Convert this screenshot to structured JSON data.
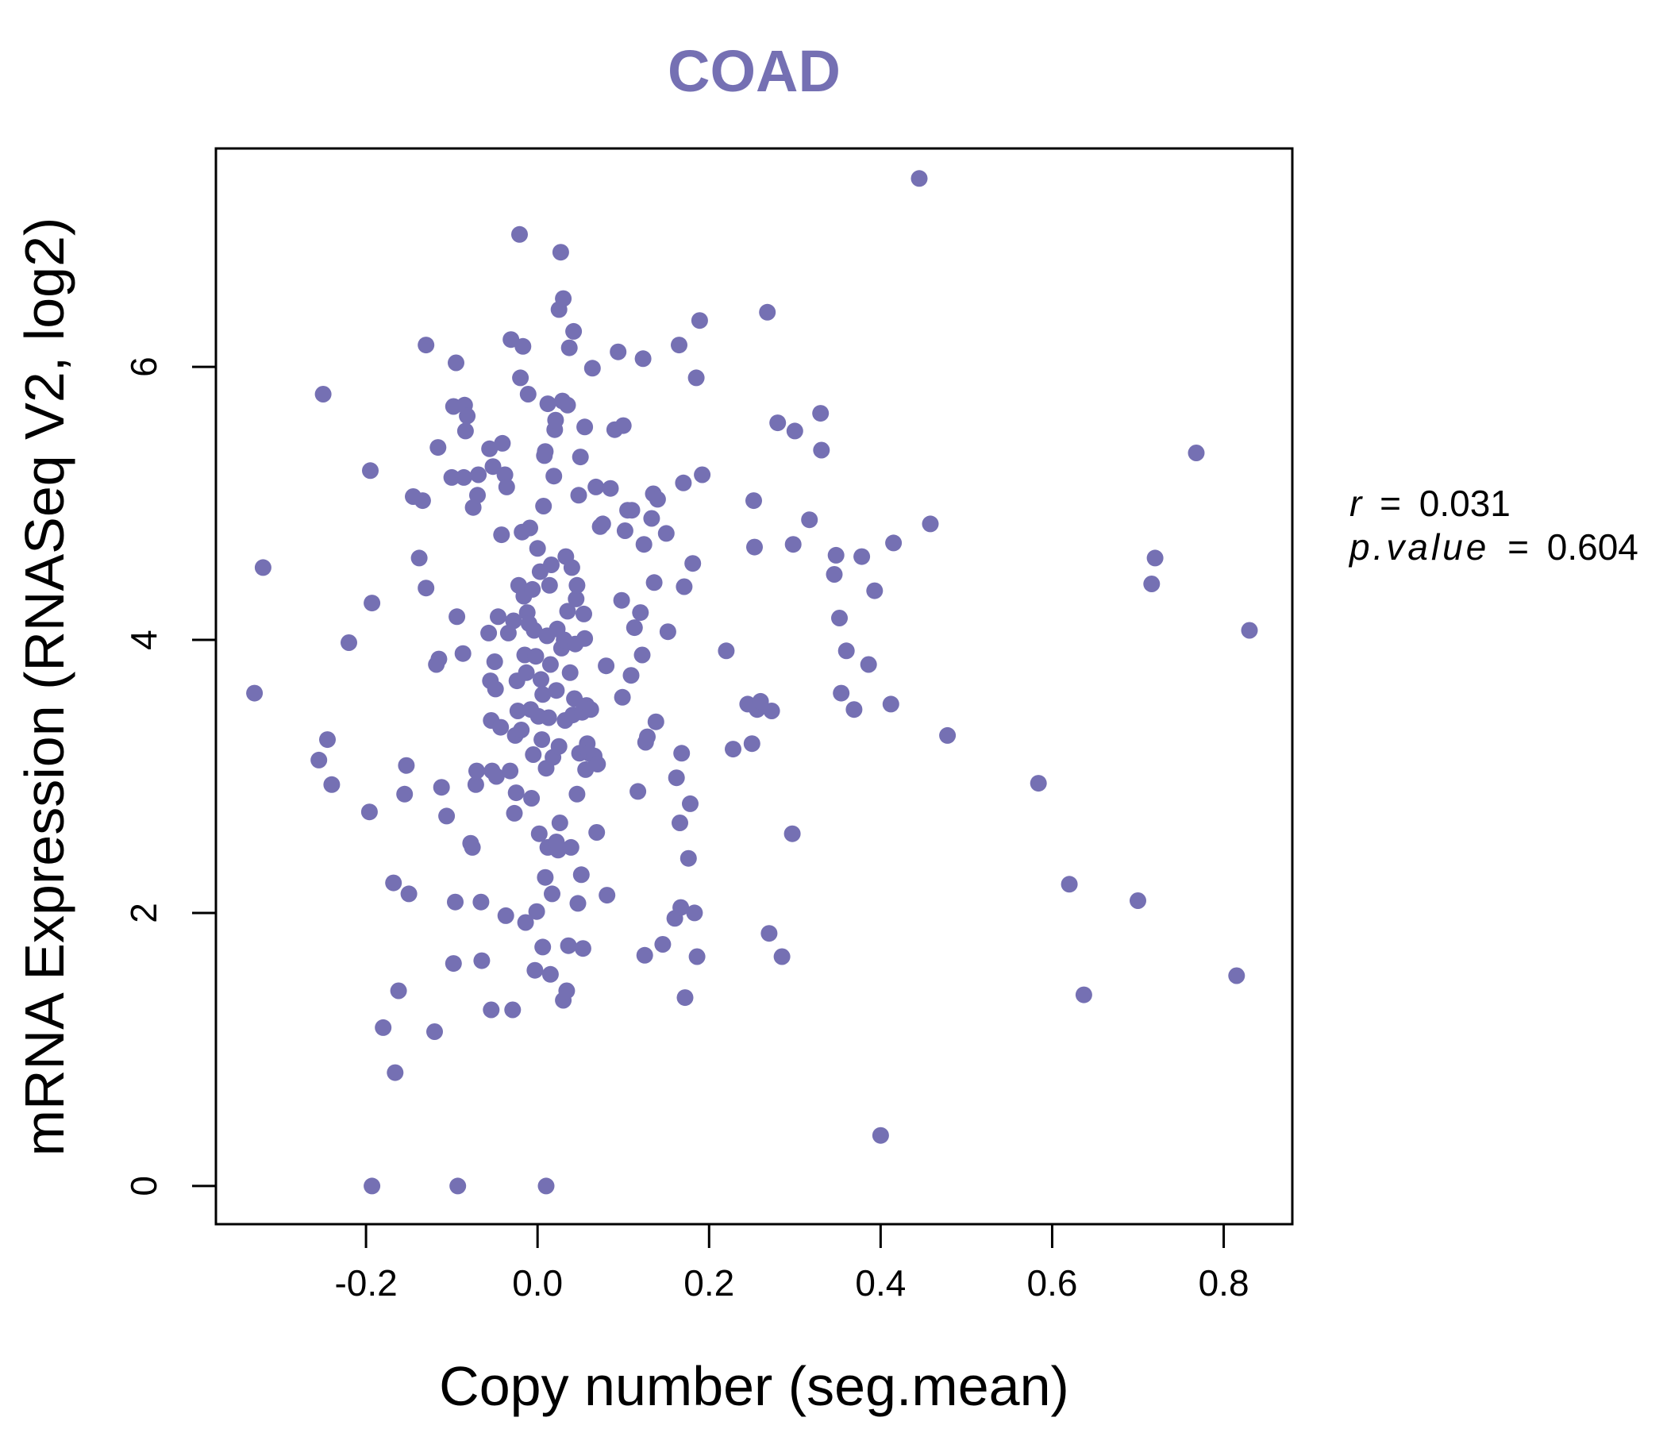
{
  "chart_data": {
    "type": "scatter",
    "title": "COAD",
    "xlabel": "Copy number (seg.mean)",
    "ylabel": "mRNA Expression (RNASeq V2, log2)",
    "xlim": [
      -0.375,
      0.88
    ],
    "ylim": [
      -0.28,
      7.6
    ],
    "x_ticks": [
      -0.2,
      0.0,
      0.2,
      0.4,
      0.6,
      0.8
    ],
    "x_tick_labels": [
      "-0.2",
      "0.0",
      "0.2",
      "0.4",
      "0.6",
      "0.8"
    ],
    "y_ticks": [
      0,
      2,
      4,
      6
    ],
    "y_tick_labels": [
      "0",
      "2",
      "4",
      "6"
    ],
    "grid": false,
    "colors": {
      "points": "#7570b3",
      "title": "#7570b3",
      "axis": "#000000"
    },
    "annotations": {
      "r_label": "r",
      "r_value": "0.031",
      "p_label": "p.value",
      "p_value": "0.604",
      "equals": "="
    },
    "points": [
      [
        -0.32,
        4.53
      ],
      [
        -0.33,
        3.61
      ],
      [
        -0.25,
        5.8
      ],
      [
        -0.245,
        3.27
      ],
      [
        -0.255,
        3.12
      ],
      [
        -0.24,
        2.94
      ],
      [
        -0.22,
        3.98
      ],
      [
        -0.195,
        5.24
      ],
      [
        -0.193,
        4.27
      ],
      [
        -0.196,
        2.74
      ],
      [
        -0.193,
        0.0
      ],
      [
        -0.18,
        1.16
      ],
      [
        -0.168,
        2.22
      ],
      [
        -0.166,
        0.83
      ],
      [
        -0.162,
        1.43
      ],
      [
        -0.155,
        2.87
      ],
      [
        -0.153,
        3.08
      ],
      [
        -0.15,
        2.14
      ],
      [
        -0.145,
        5.05
      ],
      [
        -0.138,
        4.6
      ],
      [
        -0.134,
        5.02
      ],
      [
        -0.13,
        6.16
      ],
      [
        -0.13,
        4.38
      ],
      [
        -0.12,
        1.13
      ],
      [
        -0.118,
        3.82
      ],
      [
        -0.115,
        3.86
      ],
      [
        -0.116,
        5.41
      ],
      [
        -0.112,
        2.92
      ],
      [
        -0.106,
        2.71
      ],
      [
        -0.1,
        5.19
      ],
      [
        -0.098,
        1.63
      ],
      [
        -0.096,
        2.08
      ],
      [
        -0.095,
        6.03
      ],
      [
        -0.094,
        4.17
      ],
      [
        -0.098,
        5.71
      ],
      [
        -0.093,
        0.0
      ],
      [
        -0.087,
        3.9
      ],
      [
        -0.086,
        5.19
      ],
      [
        -0.085,
        5.72
      ],
      [
        -0.084,
        5.53
      ],
      [
        -0.082,
        5.64
      ],
      [
        -0.078,
        2.51
      ],
      [
        -0.076,
        2.48
      ],
      [
        -0.075,
        4.97
      ],
      [
        -0.072,
        2.94
      ],
      [
        -0.071,
        3.04
      ],
      [
        -0.07,
        5.06
      ],
      [
        -0.069,
        5.21
      ],
      [
        -0.066,
        2.08
      ],
      [
        -0.065,
        1.65
      ],
      [
        -0.057,
        4.05
      ],
      [
        -0.056,
        5.4
      ],
      [
        -0.055,
        3.7
      ],
      [
        -0.054,
        3.41
      ],
      [
        -0.053,
        3.04
      ],
      [
        -0.054,
        1.29
      ],
      [
        -0.052,
        5.27
      ],
      [
        -0.05,
        3.84
      ],
      [
        -0.049,
        3.64
      ],
      [
        -0.048,
        3.0
      ],
      [
        -0.046,
        4.17
      ],
      [
        -0.043,
        3.36
      ],
      [
        -0.042,
        4.77
      ],
      [
        -0.041,
        5.44
      ],
      [
        -0.038,
        5.21
      ],
      [
        -0.037,
        1.98
      ],
      [
        -0.036,
        5.12
      ],
      [
        -0.034,
        4.05
      ],
      [
        -0.032,
        3.04
      ],
      [
        -0.031,
        6.2
      ],
      [
        -0.029,
        1.29
      ],
      [
        -0.028,
        4.14
      ],
      [
        -0.027,
        2.73
      ],
      [
        -0.026,
        3.3
      ],
      [
        -0.025,
        2.88
      ],
      [
        -0.024,
        3.7
      ],
      [
        -0.023,
        3.48
      ],
      [
        -0.022,
        4.4
      ],
      [
        -0.021,
        6.97
      ],
      [
        -0.02,
        5.92
      ],
      [
        -0.019,
        3.34
      ],
      [
        -0.018,
        4.79
      ],
      [
        -0.017,
        6.15
      ],
      [
        -0.016,
        4.32
      ],
      [
        -0.015,
        3.89
      ],
      [
        -0.014,
        1.93
      ],
      [
        -0.013,
        3.76
      ],
      [
        -0.012,
        4.2
      ],
      [
        -0.011,
        5.8
      ],
      [
        -0.01,
        4.12
      ],
      [
        -0.009,
        4.82
      ],
      [
        -0.008,
        3.49
      ],
      [
        -0.007,
        2.84
      ],
      [
        -0.006,
        4.37
      ],
      [
        -0.005,
        3.16
      ],
      [
        -0.004,
        4.07
      ],
      [
        -0.003,
        1.58
      ],
      [
        -0.002,
        3.88
      ],
      [
        -0.001,
        2.01
      ],
      [
        0.0,
        4.67
      ],
      [
        0.001,
        3.44
      ],
      [
        0.002,
        2.58
      ],
      [
        0.003,
        4.5
      ],
      [
        0.004,
        3.71
      ],
      [
        0.005,
        3.27
      ],
      [
        0.006,
        1.75
      ],
      [
        0.006,
        3.6
      ],
      [
        0.007,
        4.98
      ],
      [
        0.008,
        5.35
      ],
      [
        0.009,
        5.38
      ],
      [
        0.009,
        2.26
      ],
      [
        0.01,
        3.06
      ],
      [
        0.011,
        4.03
      ],
      [
        0.012,
        5.73
      ],
      [
        0.012,
        2.48
      ],
      [
        0.013,
        3.43
      ],
      [
        0.014,
        4.4
      ],
      [
        0.015,
        1.55
      ],
      [
        0.015,
        3.82
      ],
      [
        0.016,
        4.55
      ],
      [
        0.017,
        2.14
      ],
      [
        0.018,
        3.14
      ],
      [
        0.019,
        5.2
      ],
      [
        0.02,
        5.54
      ],
      [
        0.021,
        5.61
      ],
      [
        0.022,
        2.52
      ],
      [
        0.022,
        3.63
      ],
      [
        0.023,
        4.08
      ],
      [
        0.024,
        2.46
      ],
      [
        0.025,
        3.22
      ],
      [
        0.025,
        6.42
      ],
      [
        0.026,
        2.66
      ],
      [
        0.027,
        6.84
      ],
      [
        0.028,
        3.94
      ],
      [
        0.029,
        5.75
      ],
      [
        0.03,
        1.36
      ],
      [
        0.03,
        6.5
      ],
      [
        0.031,
        4.0
      ],
      [
        0.032,
        3.41
      ],
      [
        0.033,
        4.61
      ],
      [
        0.034,
        1.43
      ],
      [
        0.035,
        5.72
      ],
      [
        0.035,
        4.21
      ],
      [
        0.036,
        1.76
      ],
      [
        0.037,
        6.14
      ],
      [
        0.038,
        3.76
      ],
      [
        0.039,
        2.48
      ],
      [
        0.04,
        4.53
      ],
      [
        0.041,
        3.45
      ],
      [
        0.042,
        6.26
      ],
      [
        0.043,
        3.57
      ],
      [
        0.044,
        3.97
      ],
      [
        0.045,
        4.3
      ],
      [
        0.046,
        2.87
      ],
      [
        0.046,
        4.4
      ],
      [
        0.047,
        2.07
      ],
      [
        0.048,
        5.06
      ],
      [
        0.049,
        3.17
      ],
      [
        0.05,
        5.34
      ],
      [
        0.051,
        2.28
      ],
      [
        0.052,
        3.47
      ],
      [
        0.053,
        1.74
      ],
      [
        0.054,
        4.19
      ],
      [
        0.055,
        5.56
      ],
      [
        0.055,
        4.01
      ],
      [
        0.056,
        3.05
      ],
      [
        0.057,
        3.52
      ],
      [
        0.058,
        3.24
      ],
      [
        0.06,
        3.17
      ],
      [
        0.062,
        3.49
      ],
      [
        0.064,
        5.99
      ],
      [
        0.066,
        3.15
      ],
      [
        0.068,
        5.12
      ],
      [
        0.069,
        2.59
      ],
      [
        0.07,
        3.09
      ],
      [
        0.073,
        4.83
      ],
      [
        0.076,
        4.85
      ],
      [
        0.08,
        3.81
      ],
      [
        0.081,
        2.13
      ],
      [
        0.085,
        5.11
      ],
      [
        0.09,
        5.54
      ],
      [
        0.094,
        6.11
      ],
      [
        0.098,
        4.29
      ],
      [
        0.099,
        3.58
      ],
      [
        0.1,
        5.57
      ],
      [
        0.102,
        4.8
      ],
      [
        0.105,
        4.95
      ],
      [
        0.109,
        3.74
      ],
      [
        0.11,
        4.95
      ],
      [
        0.113,
        4.09
      ],
      [
        0.117,
        2.89
      ],
      [
        0.12,
        4.2
      ],
      [
        0.122,
        3.89
      ],
      [
        0.123,
        6.06
      ],
      [
        0.124,
        4.7
      ],
      [
        0.125,
        1.69
      ],
      [
        0.126,
        3.25
      ],
      [
        0.128,
        3.29
      ],
      [
        0.133,
        4.89
      ],
      [
        0.135,
        5.07
      ],
      [
        0.136,
        4.42
      ],
      [
        0.138,
        3.4
      ],
      [
        0.14,
        5.03
      ],
      [
        0.146,
        1.77
      ],
      [
        0.15,
        4.78
      ],
      [
        0.152,
        4.06
      ],
      [
        0.16,
        1.96
      ],
      [
        0.162,
        2.99
      ],
      [
        0.165,
        6.16
      ],
      [
        0.166,
        2.66
      ],
      [
        0.167,
        2.04
      ],
      [
        0.168,
        3.17
      ],
      [
        0.17,
        5.15
      ],
      [
        0.171,
        4.39
      ],
      [
        0.172,
        1.38
      ],
      [
        0.176,
        2.4
      ],
      [
        0.178,
        2.8
      ],
      [
        0.181,
        4.56
      ],
      [
        0.183,
        2.0
      ],
      [
        0.185,
        5.92
      ],
      [
        0.186,
        1.68
      ],
      [
        0.189,
        6.34
      ],
      [
        0.192,
        5.21
      ],
      [
        0.22,
        3.92
      ],
      [
        0.228,
        3.2
      ],
      [
        0.245,
        3.53
      ],
      [
        0.25,
        3.24
      ],
      [
        0.252,
        5.02
      ],
      [
        0.253,
        4.68
      ],
      [
        0.256,
        3.49
      ],
      [
        0.26,
        3.55
      ],
      [
        0.268,
        6.4
      ],
      [
        0.27,
        1.85
      ],
      [
        0.273,
        3.48
      ],
      [
        0.28,
        5.59
      ],
      [
        0.285,
        1.68
      ],
      [
        0.297,
        2.58
      ],
      [
        0.298,
        4.7
      ],
      [
        0.3,
        5.53
      ],
      [
        0.317,
        4.88
      ],
      [
        0.33,
        5.66
      ],
      [
        0.331,
        5.39
      ],
      [
        0.346,
        4.48
      ],
      [
        0.348,
        4.62
      ],
      [
        0.352,
        4.16
      ],
      [
        0.354,
        3.61
      ],
      [
        0.36,
        3.92
      ],
      [
        0.369,
        3.49
      ],
      [
        0.378,
        4.61
      ],
      [
        0.386,
        3.82
      ],
      [
        0.393,
        4.36
      ],
      [
        0.4,
        0.37
      ],
      [
        0.412,
        3.53
      ],
      [
        0.415,
        4.71
      ],
      [
        0.445,
        7.38
      ],
      [
        0.458,
        4.85
      ],
      [
        0.478,
        3.3
      ],
      [
        0.584,
        2.95
      ],
      [
        0.62,
        2.21
      ],
      [
        0.637,
        1.4
      ],
      [
        0.7,
        2.09
      ],
      [
        0.716,
        4.41
      ],
      [
        0.72,
        4.6
      ],
      [
        0.768,
        5.37
      ],
      [
        0.815,
        1.54
      ],
      [
        0.83,
        4.07
      ],
      [
        0.01,
        0.0
      ]
    ]
  }
}
